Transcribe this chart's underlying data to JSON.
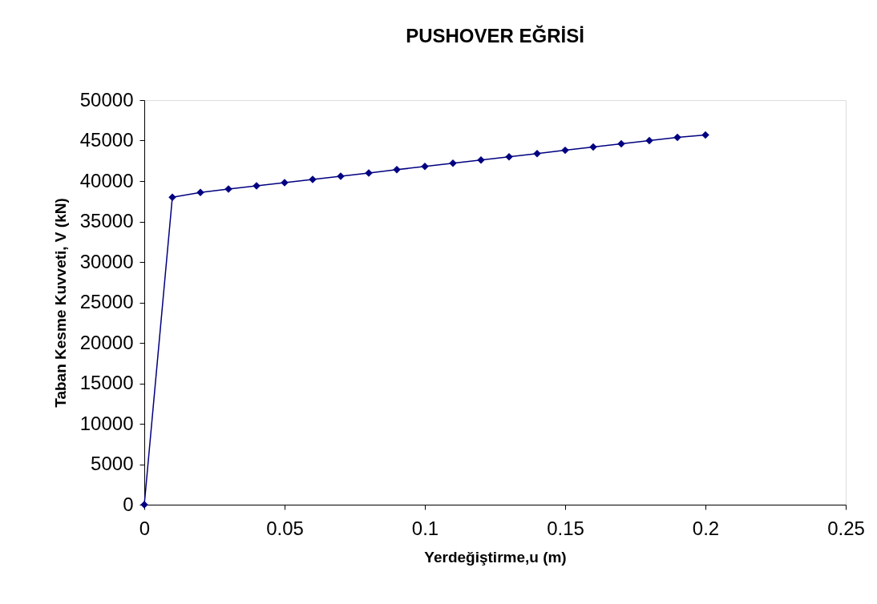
{
  "chart_data": {
    "type": "line",
    "title": "PUSHOVER EĞRİSİ",
    "xlabel": "Yerdeğiştirme,u (m)",
    "ylabel": "Taban Kesme Kuvveti, V (kN)",
    "x": [
      0,
      0.01,
      0.02,
      0.03,
      0.04,
      0.05,
      0.06,
      0.07,
      0.08,
      0.09,
      0.1,
      0.11,
      0.12,
      0.13,
      0.14,
      0.15,
      0.16,
      0.17,
      0.18,
      0.19,
      0.2
    ],
    "values": [
      0,
      38000,
      38600,
      39000,
      39400,
      39800,
      40200,
      40600,
      41000,
      41400,
      41800,
      42200,
      42600,
      43000,
      43400,
      43800,
      44200,
      44600,
      45000,
      45400,
      45700
    ],
    "color": "#000080",
    "marker": "diamond",
    "xlim": [
      0,
      0.25
    ],
    "xticks": [
      0,
      0.05,
      0.1,
      0.15,
      0.2,
      0.25
    ],
    "ylim": [
      0,
      50000
    ],
    "yticks": [
      0,
      5000,
      10000,
      15000,
      20000,
      25000,
      30000,
      35000,
      40000,
      45000,
      50000
    ]
  }
}
